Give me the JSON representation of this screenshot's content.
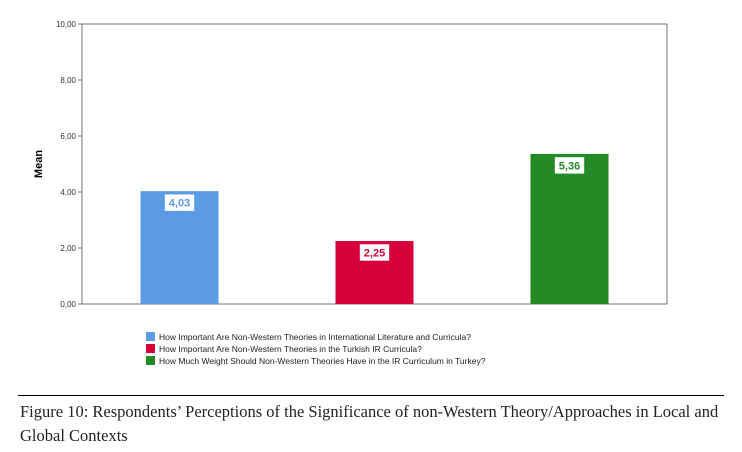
{
  "chart_data": {
    "type": "bar",
    "categories": [
      "How Important Are Non-Western Theories in International Literature and Curricula?",
      "How Important Are Non-Western Theories in the Turkish IR Curricula?",
      "How Much Weight Should Non-Western Theories Have in the IR Curriculum in Turkey?"
    ],
    "values": [
      4.03,
      2.25,
      5.36
    ],
    "data_labels": [
      "4,03",
      "2,25",
      "5,36"
    ],
    "colors": [
      "#5b9be6",
      "#d6003a",
      "#238a26"
    ],
    "title": "",
    "xlabel": "",
    "ylabel": "Mean",
    "ylim": [
      0,
      10
    ],
    "y_ticks": [
      0,
      2,
      4,
      6,
      8,
      10
    ],
    "y_tick_labels": [
      "0,00",
      "2,00",
      "4,00",
      "6,00",
      "8,00",
      "10,00"
    ],
    "grid": false,
    "legend_position": "bottom",
    "legend": [
      "How Important Are Non-Western Theories in International Literature and Curricula?",
      "How Important Are Non-Western Theories in the Turkish IR Curricula?",
      "How Much Weight Should Non-Western Theories Have in the IR Curriculum in Turkey?"
    ]
  },
  "caption": {
    "text": "Figure 10: Respondents’ Perceptions of the Significance of non-Western Theory/Approaches in Local and Global Contexts"
  }
}
